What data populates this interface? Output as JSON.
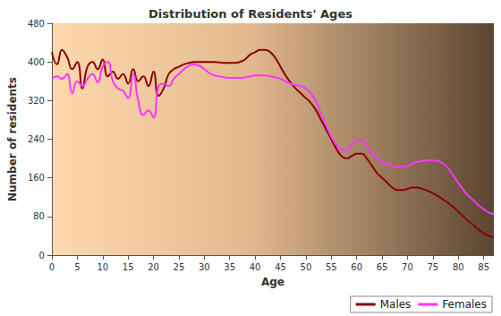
{
  "chart_data": {
    "type": "line",
    "title": "Distribution of Residents' Ages",
    "x_label": "Age",
    "y_label": "Number of residents",
    "x": [
      0,
      1,
      2,
      3,
      4,
      5,
      6,
      7,
      8,
      9,
      10,
      11,
      12,
      13,
      14,
      15,
      16,
      17,
      18,
      19,
      20,
      21,
      22,
      23,
      24,
      25,
      26,
      27,
      28,
      29,
      30,
      31,
      32,
      33,
      34,
      35,
      36,
      37,
      38,
      39,
      40,
      41,
      42,
      43,
      44,
      45,
      46,
      47,
      48,
      49,
      50,
      51,
      52,
      53,
      54,
      55,
      56,
      57,
      58,
      59,
      60,
      61,
      62,
      63,
      64,
      65,
      66,
      67,
      68,
      69,
      70,
      71,
      72,
      73,
      74,
      75,
      76,
      77,
      78,
      79,
      80,
      81,
      82,
      83,
      84,
      85,
      86,
      87
    ],
    "series": [
      {
        "name": "Males",
        "color": "#8b0000",
        "values": [
          420,
          395,
          425,
          410,
          385,
          400,
          345,
          390,
          400,
          385,
          405,
          370,
          380,
          365,
          375,
          355,
          385,
          360,
          370,
          350,
          380,
          330,
          345,
          375,
          385,
          390,
          395,
          398,
          400,
          400,
          400,
          400,
          400,
          399,
          398,
          398,
          398,
          400,
          405,
          415,
          420,
          425,
          425,
          420,
          408,
          390,
          372,
          357,
          345,
          335,
          325,
          315,
          300,
          280,
          260,
          240,
          220,
          205,
          200,
          205,
          210,
          210,
          200,
          185,
          170,
          160,
          150,
          140,
          135,
          135,
          137,
          140,
          140,
          137,
          133,
          128,
          122,
          115,
          108,
          100,
          90,
          80,
          70,
          62,
          53,
          45,
          40,
          37
        ]
      },
      {
        "name": "Females",
        "color": "#ff33ff",
        "values": [
          365,
          370,
          365,
          375,
          335,
          360,
          350,
          365,
          375,
          358,
          390,
          400,
          360,
          345,
          340,
          325,
          375,
          320,
          290,
          300,
          285,
          350,
          355,
          350,
          365,
          375,
          385,
          392,
          395,
          392,
          385,
          377,
          372,
          370,
          368,
          367,
          367,
          367,
          368,
          370,
          372,
          372,
          372,
          370,
          368,
          365,
          360,
          355,
          352,
          350,
          345,
          335,
          318,
          292,
          268,
          245,
          228,
          218,
          218,
          228,
          238,
          238,
          225,
          212,
          200,
          193,
          188,
          185,
          183,
          183,
          185,
          190,
          193,
          195,
          196,
          196,
          195,
          190,
          180,
          165,
          150,
          135,
          123,
          113,
          103,
          95,
          88,
          85
        ]
      }
    ],
    "xlim": [
      0,
      87
    ],
    "xticks": [
      0,
      5,
      10,
      15,
      20,
      25,
      30,
      35,
      40,
      45,
      50,
      55,
      60,
      65,
      70,
      75,
      80,
      85
    ],
    "ylim": [
      0,
      480
    ],
    "yticks": [
      0,
      80,
      160,
      240,
      320,
      400,
      480
    ],
    "grid": false,
    "legend": "bottom right"
  }
}
